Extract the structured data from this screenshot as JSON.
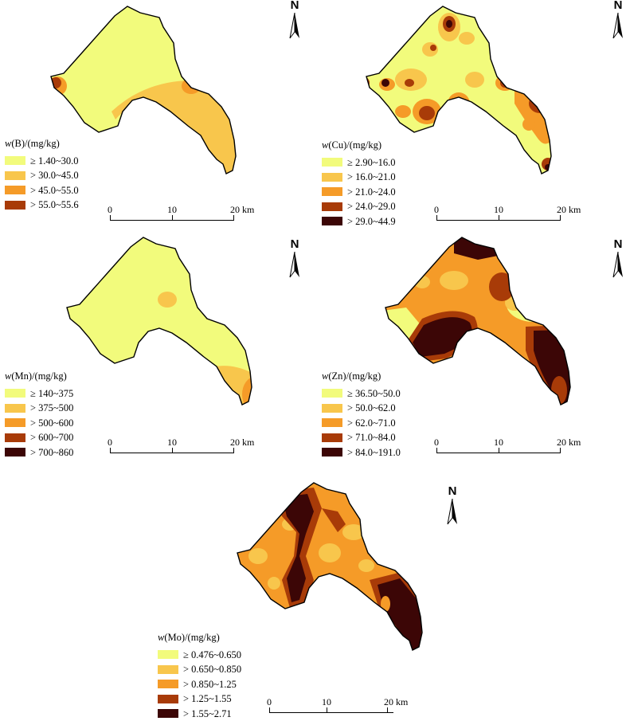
{
  "north_label": "N",
  "scale": {
    "ticks": [
      "0",
      "10",
      "20 km"
    ]
  },
  "colors": {
    "c1": "#f2fb7c",
    "c2": "#f8c64c",
    "c3": "#f59b28",
    "c4": "#a83b08",
    "c5": "#3c0606"
  },
  "panels": [
    {
      "id": "B",
      "legend_title_element": "B",
      "legend_title_unit": "/(mg/kg)",
      "legend": [
        "≥ 1.40~30.0",
        "> 30.0~45.0",
        "> 45.0~55.0",
        "> 55.0~55.6"
      ]
    },
    {
      "id": "Cu",
      "legend_title_element": "Cu",
      "legend_title_unit": "/(mg/kg)",
      "legend": [
        "≥ 2.90~16.0",
        "> 16.0~21.0",
        "> 21.0~24.0",
        "> 24.0~29.0",
        "> 29.0~44.9"
      ]
    },
    {
      "id": "Mn",
      "legend_title_element": "Mn",
      "legend_title_unit": "/(mg/kg)",
      "legend": [
        "≥ 140~375",
        "> 375~500",
        "> 500~600",
        "> 600~700",
        "> 700~860"
      ]
    },
    {
      "id": "Zn",
      "legend_title_element": "Zn",
      "legend_title_unit": "/(mg/kg)",
      "legend": [
        "≥ 36.50~50.0",
        "> 50.0~62.0",
        "> 62.0~71.0",
        "> 71.0~84.0",
        "> 84.0~191.0"
      ]
    },
    {
      "id": "Mo",
      "legend_title_element": "Mo",
      "legend_title_unit": "/(mg/kg)",
      "legend": [
        "≥ 0.476~0.650",
        "> 0.650~0.850",
        "> 0.850~1.25",
        "> 1.25~1.55",
        "> 1.55~2.71"
      ]
    }
  ]
}
